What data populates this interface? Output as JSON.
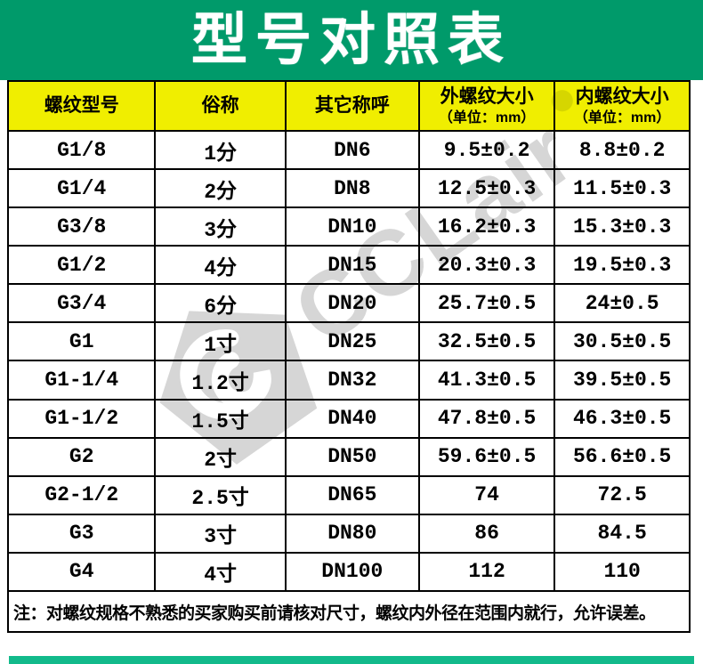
{
  "title": "型号对照表",
  "colors": {
    "banner_green": "#009A6A",
    "header_yellow": "#F0EE00",
    "bottom_bar_teal": "#12BA8B",
    "watermark_gray": "#D6D6D6",
    "text_black": "#000000"
  },
  "table": {
    "columns": [
      {
        "label": "螺纹型号",
        "sub": ""
      },
      {
        "label": "俗称",
        "sub": ""
      },
      {
        "label": "其它称呼",
        "sub": ""
      },
      {
        "label": "外螺纹大小",
        "sub": "（单位：mm）"
      },
      {
        "label": "内螺纹大小",
        "sub": "（单位：mm）"
      }
    ],
    "rows": [
      [
        "G1/8",
        "1分",
        "DN6",
        "9.5±0.2",
        "8.8±0.2"
      ],
      [
        "G1/4",
        "2分",
        "DN8",
        "12.5±0.3",
        "11.5±0.3"
      ],
      [
        "G3/8",
        "3分",
        "DN10",
        "16.2±0.3",
        "15.3±0.3"
      ],
      [
        "G1/2",
        "4分",
        "DN15",
        "20.3±0.3",
        "19.5±0.3"
      ],
      [
        "G3/4",
        "6分",
        "DN20",
        "25.7±0.5",
        "24±0.5"
      ],
      [
        "G1",
        "1寸",
        "DN25",
        "32.5±0.5",
        "30.5±0.5"
      ],
      [
        "G1-1/4",
        "1.2寸",
        "DN32",
        "41.3±0.5",
        "39.5±0.5"
      ],
      [
        "G1-1/2",
        "1.5寸",
        "DN40",
        "47.8±0.5",
        "46.3±0.5"
      ],
      [
        "G2",
        "2寸",
        "DN50",
        "59.6±0.5",
        "56.6±0.5"
      ],
      [
        "G2-1/2",
        "2.5寸",
        "DN65",
        "74",
        "72.5"
      ],
      [
        "G3",
        "3寸",
        "DN80",
        "86",
        "84.5"
      ],
      [
        "G4",
        "4寸",
        "DN100",
        "112",
        "110"
      ]
    ],
    "note": "注：对螺纹规格不熟悉的买家购买前请核对尺寸，螺纹内外径在范围内就行，允许误差。"
  },
  "watermark": {
    "text": "CCLair",
    "logo": "cclair-diamond-logo"
  }
}
